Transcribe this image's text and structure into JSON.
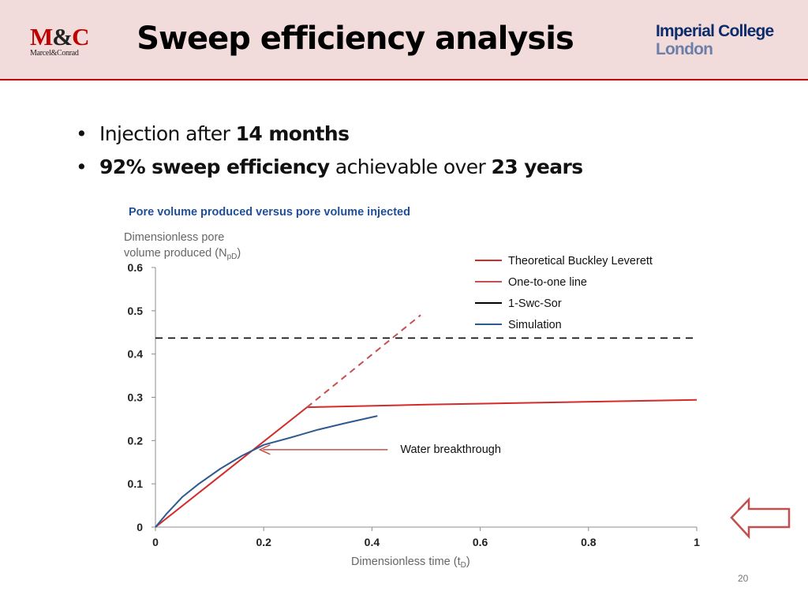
{
  "header": {
    "logo_left_big_m": "M",
    "logo_left_amp": "&",
    "logo_left_big_c": "C",
    "logo_left_small": "Marcel&Conrad",
    "title": "Sweep efficiency analysis",
    "logo_right_line1": "Imperial College",
    "logo_right_line2": "London"
  },
  "bullets": [
    {
      "pre": "Injection after ",
      "bold": "14 months",
      "post": ""
    },
    {
      "pre": "",
      "bold": "92% sweep efficiency",
      "post": " achievable over ",
      "bold2": "23 years"
    }
  ],
  "page_number": "20",
  "colors": {
    "brand_red": "#c00000",
    "header_bg": "#f2dcdb",
    "sim_blue": "#2e5a8e",
    "chart_title": "#1f4e9a"
  },
  "chart_data": {
    "type": "line",
    "title": "Pore volume produced versus pore volume injected",
    "ylabel_line1": "Dimensionless pore",
    "ylabel_line2_pre": "volume produced (N",
    "ylabel_sub": "pD",
    "ylabel_line2_post": ")",
    "xlabel_pre": "Dimensionless time (t",
    "xlabel_sub": "D",
    "xlabel_post": ")",
    "xlim": [
      0,
      1
    ],
    "ylim": [
      0,
      0.6
    ],
    "x_ticks": [
      "0",
      "0.2",
      "0.4",
      "0.6",
      "0.8",
      "1"
    ],
    "y_ticks": [
      "0",
      "0.1",
      "0.2",
      "0.3",
      "0.4",
      "0.5",
      "0.6"
    ],
    "legend_position": "top-right",
    "grid": false,
    "series": [
      {
        "name": "Theoretical Buckley Leverett",
        "style": "solid",
        "color": "#d42a2a",
        "x": [
          0,
          0.28,
          0.5,
          1.0
        ],
        "y": [
          0,
          0.277,
          0.283,
          0.294
        ]
      },
      {
        "name": "One-to-one line",
        "style": "dashed",
        "color": "#c84f4f",
        "x": [
          0.28,
          0.49
        ],
        "y": [
          0.277,
          0.49
        ]
      },
      {
        "name": "1-Swc-Sor",
        "style": "dashed",
        "color": "#000000",
        "x": [
          0,
          1.0
        ],
        "y": [
          0.437,
          0.437
        ]
      },
      {
        "name": "Simulation",
        "style": "solid",
        "color": "#2e5a8e",
        "x": [
          0,
          0.02,
          0.05,
          0.08,
          0.12,
          0.16,
          0.2,
          0.25,
          0.3,
          0.35,
          0.41
        ],
        "y": [
          0,
          0.03,
          0.07,
          0.1,
          0.135,
          0.165,
          0.19,
          0.207,
          0.225,
          0.24,
          0.257
        ]
      }
    ],
    "annotation": {
      "text": "Water breakthrough",
      "x": 0.19,
      "y": 0.179
    }
  }
}
